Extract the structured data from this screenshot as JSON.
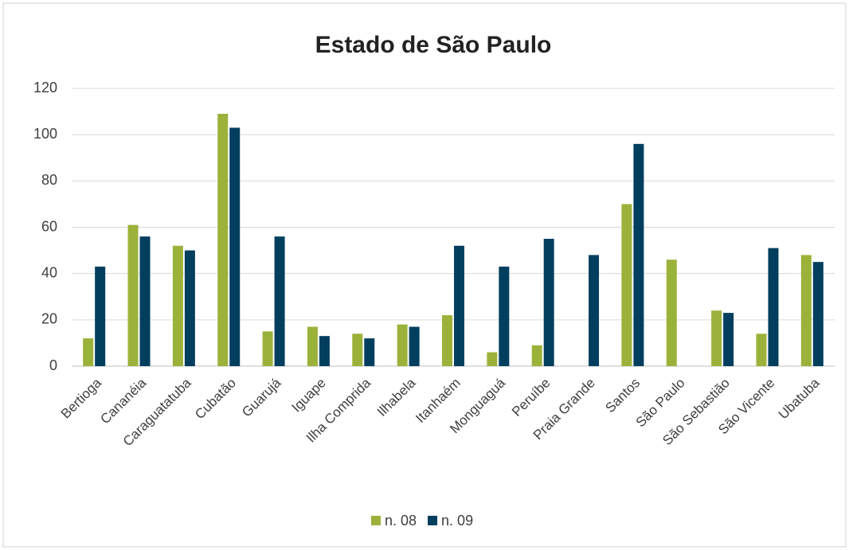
{
  "chart_data": {
    "type": "bar",
    "title": "Estado de São Paulo",
    "categories": [
      "Bertioga",
      "Cananéia",
      "Caraguatatuba",
      "Cubatão",
      "Guarujá",
      "Iguape",
      "Ilha Comprida",
      "Ilhabela",
      "Itanhaém",
      "Monguaguá",
      "Peruíbe",
      "Praia Grande",
      "Santos",
      "São Paulo",
      "São Sebastião",
      "São Vicente",
      "Ubatuba"
    ],
    "series": [
      {
        "name": "n. 08",
        "color": "#9bb23a",
        "values": [
          12,
          61,
          52,
          109,
          15,
          17,
          14,
          18,
          22,
          6,
          9,
          null,
          70,
          46,
          24,
          14,
          48
        ]
      },
      {
        "name": "n. 09",
        "color": "#023f5e",
        "values": [
          43,
          56,
          50,
          103,
          56,
          13,
          12,
          17,
          52,
          43,
          55,
          48,
          96,
          null,
          23,
          51,
          45
        ]
      }
    ],
    "ylim": [
      0,
      120
    ],
    "yticks": [
      0,
      20,
      40,
      60,
      80,
      100,
      120
    ],
    "grid": true,
    "legend": "bottom"
  }
}
